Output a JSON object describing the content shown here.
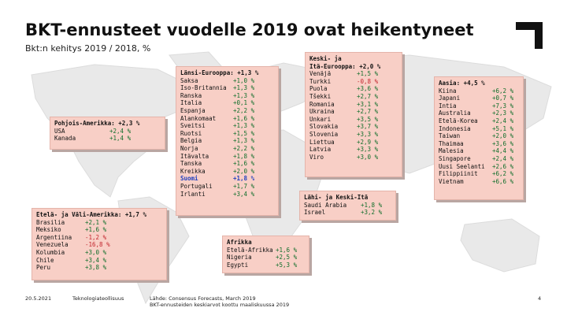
{
  "header": {
    "title": "BKT-ennusteet vuodelle 2019 ovat heikentyneet",
    "subtitle": "Bkt:n kehitys 2019 / 2018, %"
  },
  "regions": {
    "north_america": {
      "header": "Pohjois-Amerikka: +2,3 %",
      "rows": [
        {
          "name": "USA",
          "value": "+2,4 %"
        },
        {
          "name": "Kanada",
          "value": "+1,4 %"
        }
      ]
    },
    "western_europe": {
      "header": "Länsi-Eurooppa: +1,3 %",
      "rows": [
        {
          "name": "Saksa",
          "value": "+1,0 %"
        },
        {
          "name": "Iso-Britannia",
          "value": "+1,3 %"
        },
        {
          "name": "Ranska",
          "value": "+1,3 %"
        },
        {
          "name": "Italia",
          "value": "+0,1 %"
        },
        {
          "name": "Espanja",
          "value": "+2,2 %"
        },
        {
          "name": "Alankomaat",
          "value": "+1,6 %"
        },
        {
          "name": "Sveitsi",
          "value": "+1,3 %"
        },
        {
          "name": "Ruotsi",
          "value": "+1,5 %"
        },
        {
          "name": "Belgia",
          "value": "+1,3 %"
        },
        {
          "name": "Norja",
          "value": "+2,2 %"
        },
        {
          "name": "Itävalta",
          "value": "+1,8 %"
        },
        {
          "name": "Tanska",
          "value": "+1,6 %"
        },
        {
          "name": "Kreikka",
          "value": "+2,0 %"
        },
        {
          "name": "Suomi",
          "value": "+1,8 %"
        },
        {
          "name": "Portugali",
          "value": "+1,7 %"
        },
        {
          "name": "Irlanti",
          "value": "+3,4 %"
        }
      ]
    },
    "eastern_europe": {
      "header_line1": "Keski- ja",
      "header_line2": "Itä-Eurooppa: +2,0 %",
      "rows": [
        {
          "name": "Venäjä",
          "value": "+1,5 %"
        },
        {
          "name": "Turkki",
          "value": "-0,8 %"
        },
        {
          "name": "Puola",
          "value": "+3,6 %"
        },
        {
          "name": "Tšekki",
          "value": "+2,7 %"
        },
        {
          "name": "Romania",
          "value": "+3,1 %"
        },
        {
          "name": "Ukraina",
          "value": "+2,7 %"
        },
        {
          "name": "Unkari",
          "value": "+3,5 %"
        },
        {
          "name": "Slovakia",
          "value": "+3,7 %"
        },
        {
          "name": "Slovenia",
          "value": "+3,3 %"
        },
        {
          "name": "Liettua",
          "value": "+2,9 %"
        },
        {
          "name": "Latvia",
          "value": "+3,3 %"
        },
        {
          "name": "Viro",
          "value": "+3,0 %"
        }
      ]
    },
    "asia": {
      "header": "Aasia: +4,5 %",
      "rows": [
        {
          "name": "Kiina",
          "value": "+6,2 %"
        },
        {
          "name": "Japani",
          "value": "+0,7 %"
        },
        {
          "name": "Intia",
          "value": "+7,3 %"
        },
        {
          "name": "Australia",
          "value": "+2,3 %"
        },
        {
          "name": "Etelä-Korea",
          "value": "+2,4 %"
        },
        {
          "name": "Indonesia",
          "value": "+5,1 %"
        },
        {
          "name": "Taiwan",
          "value": "+2,0 %"
        },
        {
          "name": "Thaimaa",
          "value": "+3,6 %"
        },
        {
          "name": "Malesia",
          "value": "+4,4 %"
        },
        {
          "name": "Singapore",
          "value": "+2,4 %"
        },
        {
          "name": "Uusi Seelanti",
          "value": "+2,6 %"
        },
        {
          "name": "Filippiinit",
          "value": "+6,2 %"
        },
        {
          "name": "Vietnam",
          "value": "+6,6 %"
        }
      ]
    },
    "middle_east": {
      "header": "Lähi- ja Keski-Itä",
      "rows": [
        {
          "name": "Saudi Arabia",
          "value": "+1,8 %"
        },
        {
          "name": "Israel",
          "value": "+3,2 %"
        }
      ]
    },
    "latin_america": {
      "header": "Etelä- ja Väli-Amerikka: +1,7 %",
      "rows": [
        {
          "name": "Brasilia",
          "value": "+2,1 %"
        },
        {
          "name": "Meksiko",
          "value": "+1,6 %"
        },
        {
          "name": "Argentiina",
          "value": "-1,2 %"
        },
        {
          "name": "Venezuela",
          "value": "-16,8 %"
        },
        {
          "name": "Kolumbia",
          "value": "+3,0 %"
        },
        {
          "name": "Chile",
          "value": "+3,4 %"
        },
        {
          "name": "Peru",
          "value": "+3,8 %"
        }
      ]
    },
    "africa": {
      "header": "Afrikka",
      "rows": [
        {
          "name": "Etelä-Afrikka",
          "value": "+1,6 %"
        },
        {
          "name": "Nigeria",
          "value": "+2,5 %"
        },
        {
          "name": "Egypti",
          "value": "+5,3 %"
        }
      ]
    }
  },
  "footer": {
    "date": "20.5.2021",
    "org": "Teknologiateollisuus",
    "source_line1": "Lähde: Consensus Forecasts, March 2019",
    "source_line2": "BKT-ennusteiden keskiarvot koottu maaliskuussa 2019",
    "page": "4"
  },
  "colors": {
    "box_fill": "#f8cfc6",
    "positive": "#0f6e2a",
    "negative": "#c2262e",
    "highlight": "#1f3fbf",
    "land": "#e9e9e9"
  }
}
